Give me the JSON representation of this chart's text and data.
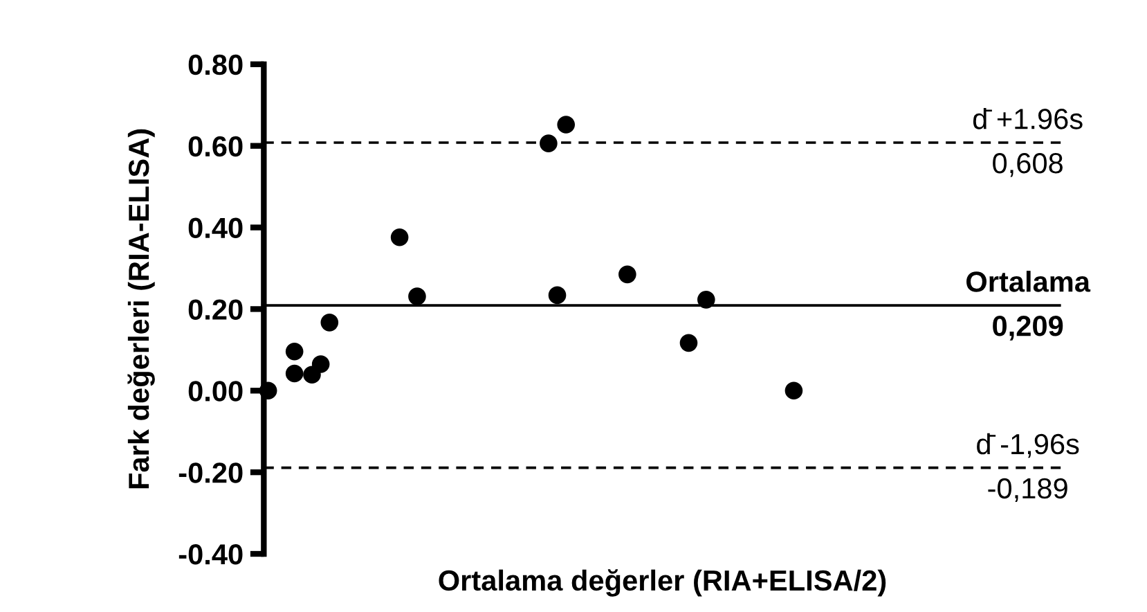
{
  "chart_data": {
    "type": "scatter",
    "ylabel": "Fark değerleri (RIA-ELISA)",
    "xlabel": "Ortalama değerler (RIA+ELISA/2)",
    "categories": [
      null,
      null,
      null,
      null,
      null,
      null,
      null,
      null,
      null,
      null,
      null,
      null,
      null,
      null,
      null,
      null,
      null,
      null,
      null,
      null,
      null,
      null,
      null,
      null,
      null,
      null,
      null,
      null,
      null,
      null,
      null,
      null,
      null,
      null,
      null,
      null,
      null,
      null,
      null,
      null,
      null,
      null,
      null,
      null,
      null,
      null,
      null,
      null,
      null,
      null,
      null,
      null,
      null,
      null,
      null,
      null,
      null,
      null,
      null,
      null,
      null,
      null,
      null,
      null,
      null,
      null,
      null,
      null,
      null,
      null,
      null,
      null,
      null,
      null,
      null,
      null,
      null,
      null,
      null,
      null,
      null,
      null,
      null,
      null,
      null,
      null,
      null,
      null,
      null,
      null,
      null
    ],
    "series": [
      {
        "color": "#000000",
        "values": [
          0.0,
          null,
          null,
          0.096,
          null,
          0.039,
          0.065,
          0.167,
          null,
          null,
          null,
          null,
          null,
          null,
          null,
          0.376,
          null,
          0.231,
          null,
          null,
          null,
          null,
          null,
          null,
          null,
          null,
          null,
          null,
          null,
          null,
          null,
          null,
          0.606,
          0.234,
          0.652,
          null,
          null,
          null,
          null,
          null,
          null,
          0.285,
          null,
          null,
          null,
          null,
          null,
          null,
          0.117,
          null,
          0.223,
          null,
          null,
          null,
          null,
          null,
          null,
          null,
          null,
          null,
          0.0,
          null,
          null,
          null,
          null,
          null,
          null,
          null,
          null,
          null,
          null,
          null,
          null,
          null,
          null,
          null,
          null,
          null,
          null,
          null,
          null,
          null,
          null,
          null,
          null,
          null,
          null,
          null,
          null,
          null,
          null
        ]
      },
      {
        "color": "#000000",
        "values": [
          null,
          null,
          null,
          0.042,
          null,
          null,
          null,
          null,
          null,
          null,
          null,
          null,
          null,
          null,
          null,
          null,
          null,
          null,
          null,
          null,
          null,
          null,
          null,
          null,
          null,
          null,
          null,
          null,
          null,
          null,
          null,
          null,
          null,
          null,
          null,
          null,
          null,
          null,
          null,
          null,
          null,
          null,
          null,
          null,
          null,
          null,
          null,
          null,
          null,
          null,
          null,
          null,
          null,
          null,
          null,
          null,
          null,
          null,
          null,
          null,
          null,
          null,
          null,
          null,
          null,
          null,
          null,
          null,
          null,
          null,
          null,
          null,
          null,
          null,
          null,
          null,
          null,
          null,
          null,
          null,
          null,
          null,
          null,
          null,
          null,
          null,
          null,
          null,
          null,
          null,
          null
        ]
      }
    ],
    "marker": "circle",
    "ylim": [
      -0.4,
      0.8
    ],
    "yticks": [
      {
        "value": -0.4,
        "label": "-0.40"
      },
      {
        "value": -0.2,
        "label": "-0.20"
      },
      {
        "value": 0,
        "label": "0.00"
      },
      {
        "value": 0.2,
        "label": "0.20"
      },
      {
        "value": 0.4,
        "label": "0.40"
      },
      {
        "value": 0.6,
        "label": "0.60"
      },
      {
        "value": 0.8,
        "label": "0.80"
      }
    ],
    "tick_labels": "y",
    "ref_lines": [
      {
        "axis": "y",
        "value": 0.608,
        "label": "d̄ +1.96s",
        "line_style": "dashed",
        "color": "#000000"
      },
      {
        "axis": "y",
        "value": 0.209,
        "label": "Ortalama",
        "line_style": "solid",
        "color": "#000000"
      },
      {
        "axis": "y",
        "value": -0.189,
        "label": "d̄ -1,96s",
        "line_style": "dashed",
        "color": "#000000"
      }
    ],
    "annotations": [
      {
        "text": "0,608",
        "y": 0.608
      },
      {
        "text": "0,209",
        "y": 0.209
      },
      {
        "text": "-0,189",
        "y": -0.189
      }
    ]
  }
}
